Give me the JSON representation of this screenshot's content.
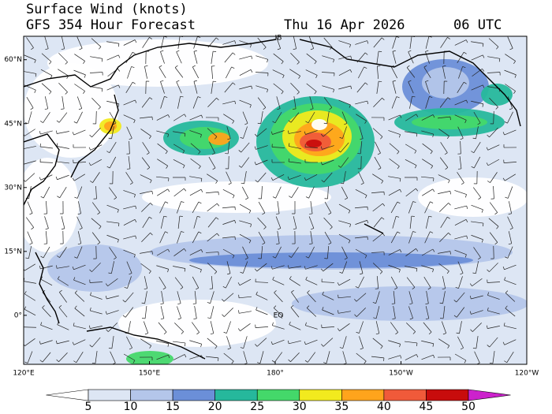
{
  "header": {
    "title": "Surface Wind (knots)",
    "subtitle": "GFS 354 Hour Forecast",
    "date": "Thu 16 Apr 2026",
    "time": "06 UTC"
  },
  "map": {
    "lonlim": [
      120,
      240
    ],
    "latlim": [
      -11.5,
      65.5
    ],
    "lon_ticks": [
      {
        "value": 120,
        "label": "120°E"
      },
      {
        "value": 150,
        "label": "150°E"
      },
      {
        "value": 180,
        "label": "180°"
      },
      {
        "value": 210,
        "label": "150°W"
      },
      {
        "value": 240,
        "label": "120°W"
      }
    ],
    "lat_ticks": [
      {
        "value": 0,
        "label": "0°"
      },
      {
        "value": 15,
        "label": "15°N"
      },
      {
        "value": 30,
        "label": "30°N"
      },
      {
        "value": 45,
        "label": "45°N"
      },
      {
        "value": 60,
        "label": "60°N"
      }
    ],
    "annotations": [
      "IB",
      "EQ"
    ]
  },
  "colorbar": {
    "levels": [
      5,
      10,
      15,
      20,
      25,
      30,
      35,
      40,
      45,
      50
    ],
    "colors": [
      "#ffffff",
      "#dde6f4",
      "#b4c6ea",
      "#6b8fd8",
      "#26b89c",
      "#44d86a",
      "#f2ea1e",
      "#ffa41c",
      "#f05a3a",
      "#c80c0c",
      "#cc22cc"
    ]
  }
}
